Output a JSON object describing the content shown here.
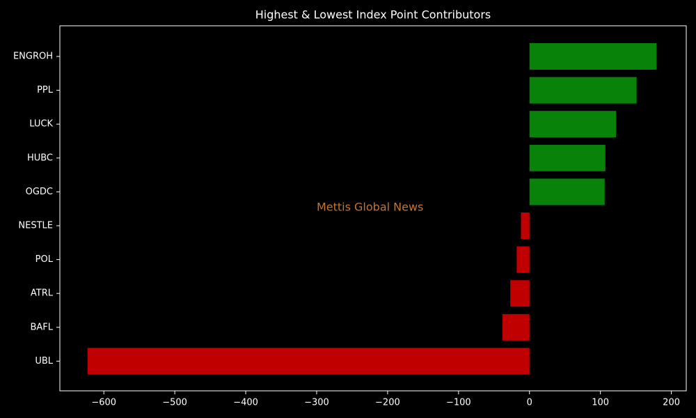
{
  "chart_data": {
    "type": "barh",
    "title": "Highest & Lowest Index Point Contributors",
    "annotation": "Mettis Global News",
    "annotation_color": "#c8742a",
    "categories": [
      "ENGROH",
      "PPL",
      "LUCK",
      "HUBC",
      "OGDC",
      "NESTLE",
      "POL",
      "ATRL",
      "BAFL",
      "UBL"
    ],
    "values": [
      179,
      151,
      122,
      107,
      106,
      -12,
      -18,
      -27,
      -38,
      -623
    ],
    "colors": [
      "#088208",
      "#088208",
      "#088208",
      "#088208",
      "#088208",
      "#c00000",
      "#c00000",
      "#c00000",
      "#c00000",
      "#c00000"
    ],
    "xlim": [
      -662,
      221
    ],
    "xticks": [
      {
        "value": -600,
        "label": "−600"
      },
      {
        "value": -500,
        "label": "−500"
      },
      {
        "value": -400,
        "label": "−400"
      },
      {
        "value": -300,
        "label": "−300"
      },
      {
        "value": -200,
        "label": "−200"
      },
      {
        "value": -100,
        "label": "−100"
      },
      0,
      100,
      200
    ],
    "grid": false
  }
}
